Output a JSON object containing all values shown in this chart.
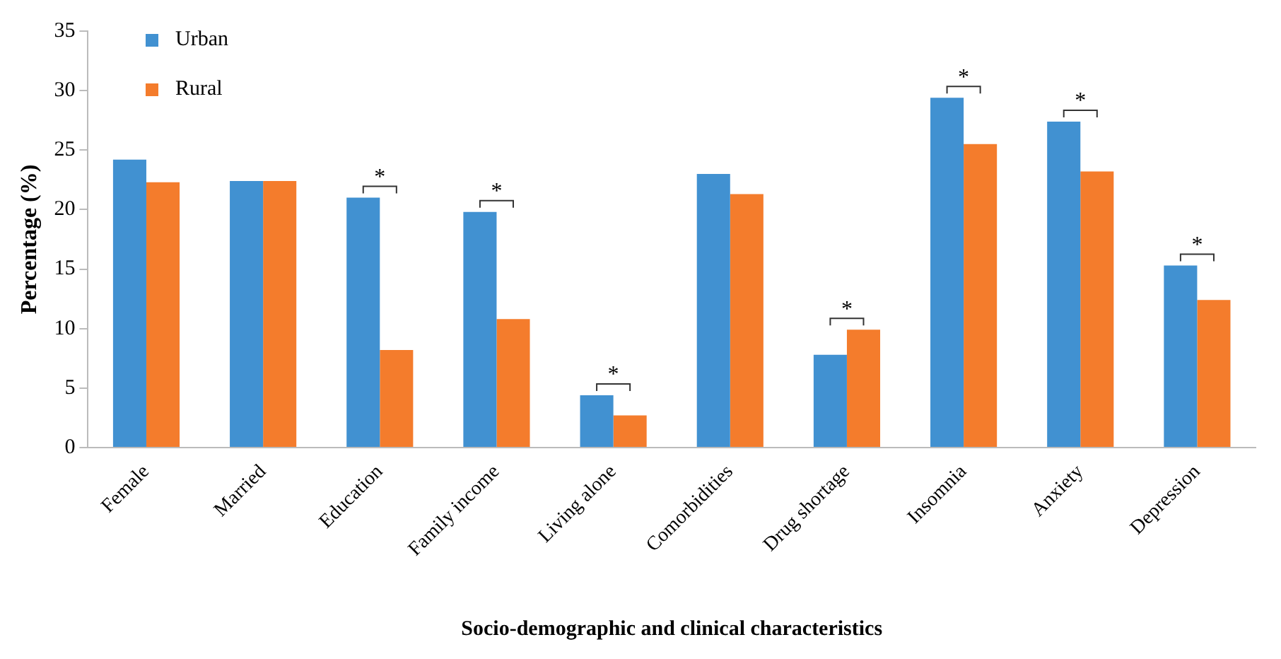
{
  "chart_data": {
    "type": "bar",
    "xlabel": "Socio-demographic and clinical characteristics",
    "ylabel": "Percentage (%)",
    "categories": [
      "Female",
      "Married",
      "Education",
      "Family income",
      "Living alone",
      "Comorbidities",
      "Drug shortage",
      "Insomnia",
      "Anxiety",
      "Depression"
    ],
    "series": [
      {
        "name": "Urban",
        "color": "#4191d1",
        "values": [
          24.2,
          22.4,
          21.0,
          19.8,
          4.4,
          23.0,
          7.8,
          29.4,
          27.4,
          15.3
        ]
      },
      {
        "name": "Rural",
        "color": "#f47c2c",
        "values": [
          22.3,
          22.4,
          8.2,
          10.8,
          2.7,
          21.3,
          9.9,
          25.5,
          23.2,
          12.4
        ]
      }
    ],
    "ylim": [
      0,
      35
    ],
    "yticks": [
      0,
      5,
      10,
      15,
      20,
      25,
      30,
      35
    ],
    "grid": false,
    "legend": "top left",
    "annotations": [
      {
        "text": "*",
        "x": "Education",
        "y": 21.0
      },
      {
        "text": "*",
        "x": "Family income",
        "y": 19.8
      },
      {
        "text": "*",
        "x": "Living alone",
        "y": 4.4
      },
      {
        "text": "*",
        "x": "Drug shortage",
        "y": 9.9
      },
      {
        "text": "*",
        "x": "Insomnia",
        "y": 29.4
      },
      {
        "text": "*",
        "x": "Anxiety",
        "y": 27.4
      },
      {
        "text": "*",
        "x": "Depression",
        "y": 15.3
      }
    ]
  }
}
